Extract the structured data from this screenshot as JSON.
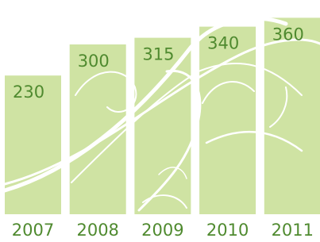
{
  "chart_data": {
    "type": "bar",
    "categories": [
      "2007",
      "2008",
      "2009",
      "2010",
      "2011"
    ],
    "values": [
      230,
      300,
      315,
      340,
      360
    ],
    "color": "#cfe3a3",
    "ylim": [
      0,
      400
    ]
  }
}
